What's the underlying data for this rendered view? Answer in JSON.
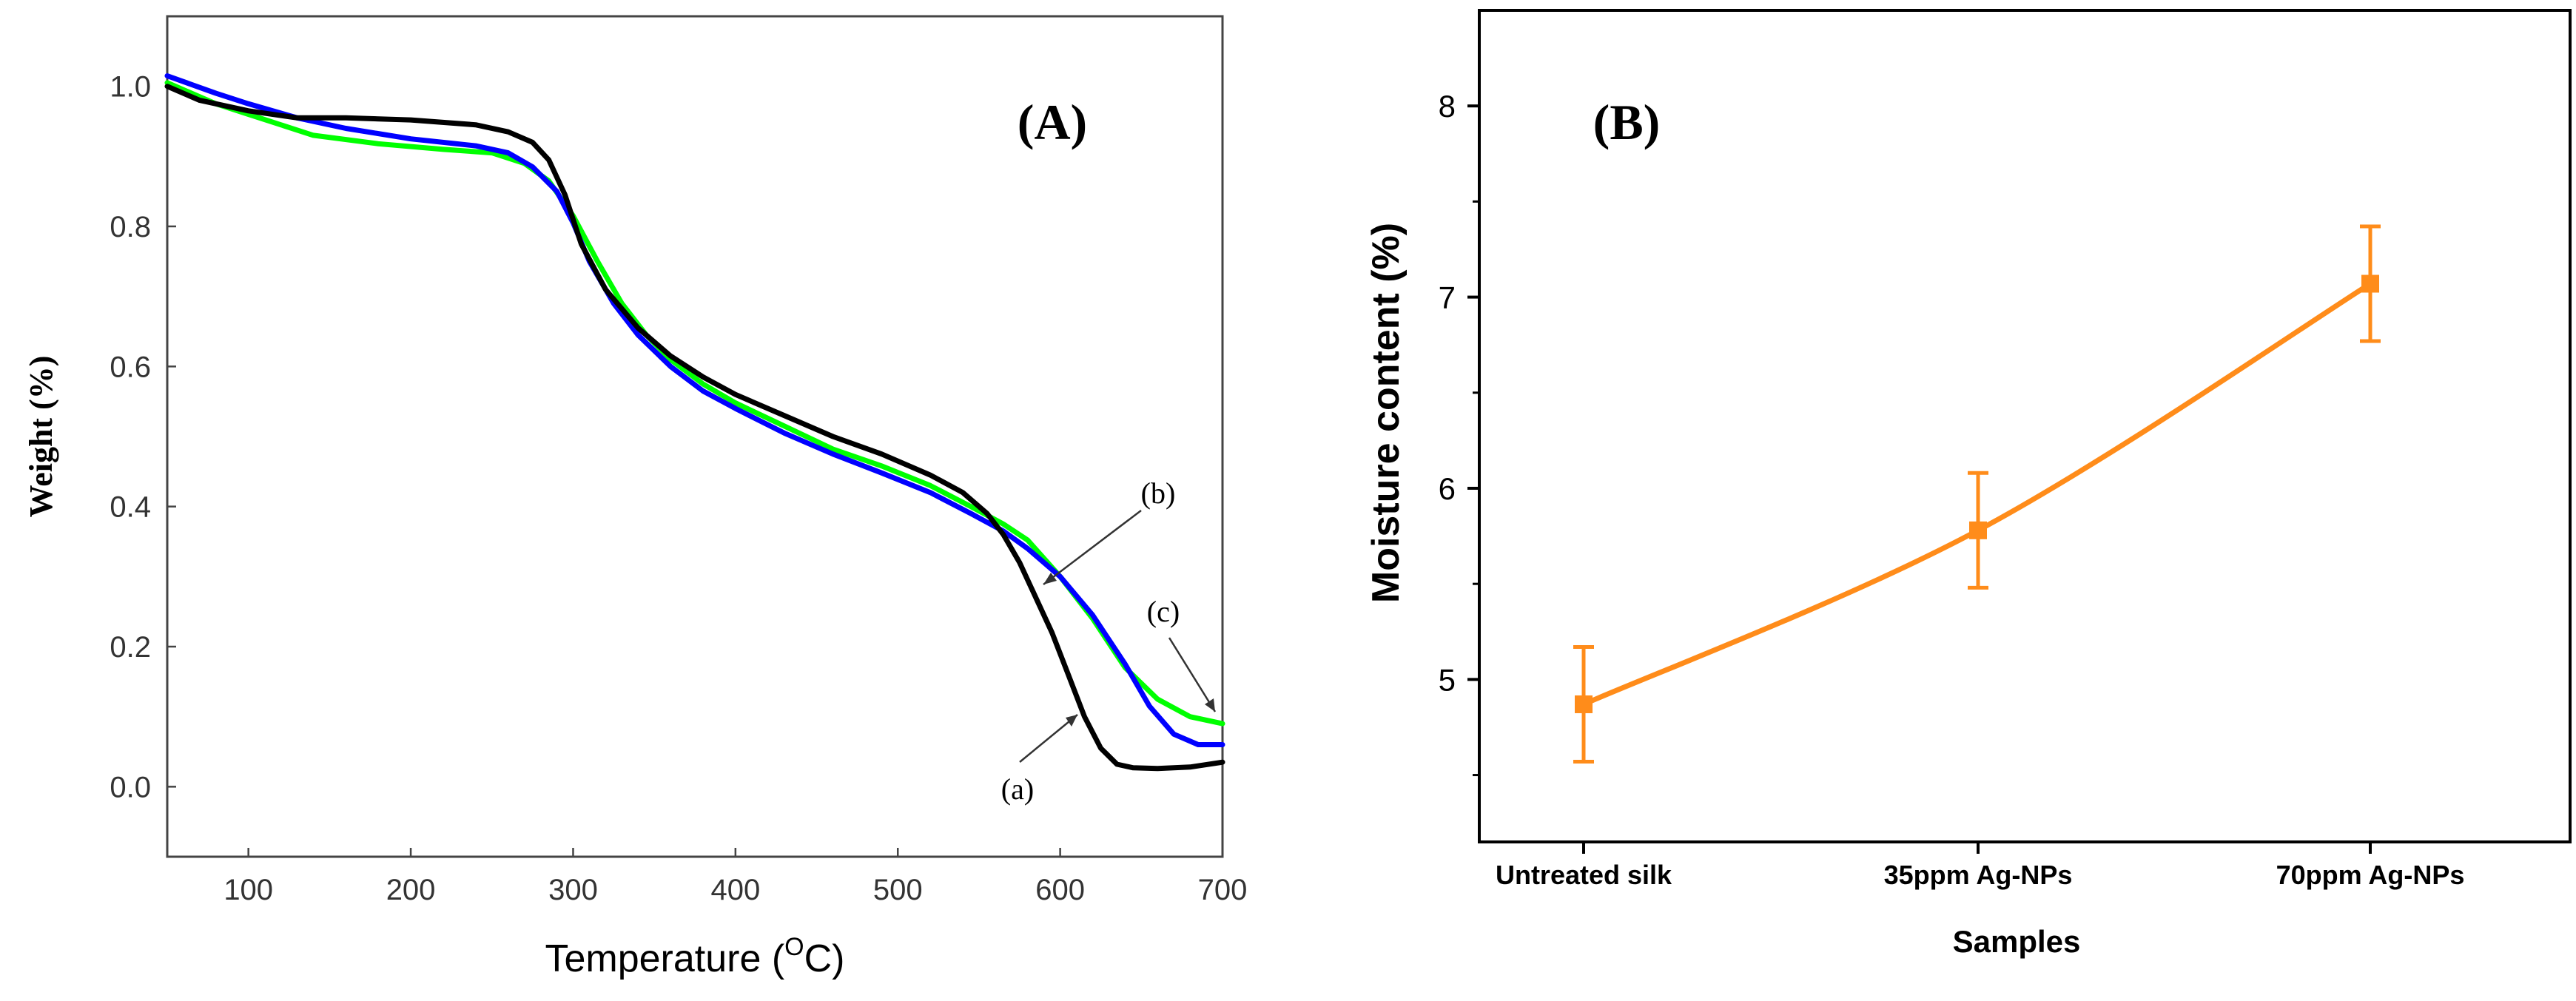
{
  "chart_data": [
    {
      "type": "line",
      "panel_label": "(A)",
      "xlabel_text": "Temperature (",
      "xlabel_super": "O",
      "xlabel_unit": "C)",
      "ylabel": "Weight (%)",
      "xlim": [
        50,
        700
      ],
      "ylim": [
        -0.1,
        1.1
      ],
      "xticks": [
        100,
        200,
        300,
        400,
        500,
        600,
        700
      ],
      "yticks": [
        0.0,
        0.2,
        0.4,
        0.6,
        0.8,
        1.0
      ],
      "xtick_labels": [
        "100",
        "200",
        "300",
        "400",
        "500",
        "600",
        "700"
      ],
      "ytick_labels": [
        "0.0",
        "0.2",
        "0.4",
        "0.6",
        "0.8",
        "1.0"
      ],
      "grid": false,
      "series": [
        {
          "name": "(a)",
          "color": "#000000",
          "x": [
            50,
            70,
            100,
            130,
            160,
            200,
            240,
            260,
            275,
            285,
            295,
            305,
            320,
            340,
            360,
            380,
            400,
            430,
            460,
            490,
            520,
            540,
            555,
            565,
            575,
            585,
            595,
            605,
            615,
            625,
            635,
            645,
            660,
            680,
            700
          ],
          "y": [
            1.0,
            0.98,
            0.965,
            0.955,
            0.955,
            0.952,
            0.945,
            0.935,
            0.92,
            0.895,
            0.845,
            0.775,
            0.71,
            0.655,
            0.615,
            0.585,
            0.56,
            0.53,
            0.5,
            0.475,
            0.445,
            0.42,
            0.39,
            0.36,
            0.32,
            0.27,
            0.22,
            0.16,
            0.1,
            0.055,
            0.032,
            0.027,
            0.026,
            0.028,
            0.035
          ]
        },
        {
          "name": "(b)",
          "color": "#0000ff",
          "x": [
            50,
            80,
            100,
            130,
            160,
            200,
            240,
            260,
            275,
            290,
            300,
            310,
            325,
            340,
            360,
            380,
            400,
            430,
            460,
            490,
            520,
            545,
            565,
            580,
            600,
            620,
            640,
            655,
            670,
            685,
            700
          ],
          "y": [
            1.015,
            0.99,
            0.975,
            0.955,
            0.94,
            0.925,
            0.915,
            0.905,
            0.885,
            0.85,
            0.805,
            0.75,
            0.69,
            0.645,
            0.6,
            0.565,
            0.54,
            0.505,
            0.475,
            0.448,
            0.42,
            0.39,
            0.365,
            0.34,
            0.3,
            0.245,
            0.175,
            0.115,
            0.075,
            0.06,
            0.06
          ]
        },
        {
          "name": "(c)",
          "color": "#00ff00",
          "x": [
            50,
            80,
            100,
            140,
            180,
            220,
            250,
            270,
            285,
            300,
            315,
            330,
            345,
            360,
            380,
            400,
            430,
            460,
            490,
            520,
            545,
            565,
            580,
            600,
            620,
            640,
            660,
            680,
            700
          ],
          "y": [
            1.005,
            0.975,
            0.96,
            0.93,
            0.918,
            0.91,
            0.905,
            0.89,
            0.865,
            0.815,
            0.75,
            0.69,
            0.645,
            0.61,
            0.575,
            0.548,
            0.515,
            0.482,
            0.458,
            0.43,
            0.4,
            0.375,
            0.352,
            0.3,
            0.24,
            0.17,
            0.125,
            0.1,
            0.09
          ]
        }
      ],
      "annotations": [
        {
          "text": "(a)",
          "points_to_series": "(a)"
        },
        {
          "text": "(b)",
          "points_to_series": "(b)"
        },
        {
          "text": "(c)",
          "points_to_series": "(c)"
        }
      ]
    },
    {
      "type": "line",
      "panel_label": "(B)",
      "xlabel": "Samples",
      "ylabel": "Moisture content (%)",
      "categories": [
        "Untreated silk",
        "35ppm Ag-NPs",
        "70ppm Ag-NPs"
      ],
      "ylim": [
        4.15,
        8.5
      ],
      "yticks": [
        5,
        6,
        7,
        8
      ],
      "ytick_labels": [
        "5",
        "6",
        "7",
        "8"
      ],
      "grid": false,
      "series": [
        {
          "name": "Moisture content",
          "color": "#ff8c1a",
          "values": [
            4.87,
            5.78,
            7.07
          ],
          "error": [
            0.3,
            0.3,
            0.3
          ]
        }
      ]
    }
  ]
}
